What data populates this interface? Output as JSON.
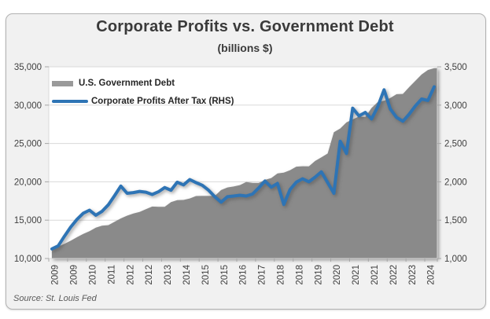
{
  "title": "Corporate Profits vs. Government Debt",
  "subtitle": "(billions $)",
  "source": "Source: St. Louis Fed",
  "legend": [
    {
      "label": "U.S. Government Debt",
      "color": "#9a9a9a",
      "marker": "rect"
    },
    {
      "label": "Corporate Profits After Tax (RHS)",
      "color": "#2e74b5",
      "marker": "line"
    }
  ],
  "colors": {
    "area_fill": "#8a8a8a",
    "line_stroke": "#2e74b5",
    "plot_background": "#ffffff",
    "frame_background": "#f1f1f1",
    "gridline": "#d9d9d9",
    "axis_text": "#404040",
    "tick_mark": "#a6a6a6",
    "plot_border": "#d9d9d9",
    "bottom_axis": "#bfbfbf"
  },
  "chart_data": {
    "type": "area",
    "subtype": "area-plus-line-dual-axis",
    "title": "Corporate Profits vs. Government Debt",
    "subtitle": "(billions $)",
    "x_frequency": "quarterly",
    "x_tick_labels": [
      "2009",
      "2009",
      "2010",
      "2011",
      "2012",
      "2012",
      "2013",
      "2014",
      "2015",
      "2015",
      "2016",
      "2017",
      "2018",
      "2018",
      "2019",
      "2020",
      "2021",
      "2021",
      "2022",
      "2023",
      "2024"
    ],
    "left_axis": {
      "min": 10000,
      "max": 35000,
      "tick_labels": [
        "35,000",
        "30,000",
        "25,000",
        "20,000",
        "15,000",
        "10,000"
      ]
    },
    "right_axis": {
      "min": 1000,
      "max": 3500,
      "tick_labels": [
        "3,500",
        "3,000",
        "2,500",
        "2,000",
        "1,500",
        "1,000"
      ]
    },
    "grid": "horizontal",
    "legend_position": "top-left-inside",
    "series": [
      {
        "name": "U.S. Government Debt",
        "type": "area",
        "axis": "left",
        "values": [
          11127,
          11545,
          11910,
          12311,
          12773,
          13202,
          13562,
          14025,
          14270,
          14343,
          14790,
          15223,
          15582,
          15856,
          16066,
          16433,
          16771,
          16738,
          16738,
          17352,
          17601,
          17633,
          17824,
          18141,
          18152,
          18152,
          18151,
          18922,
          19265,
          19382,
          19573,
          19977,
          19846,
          19845,
          20245,
          20493,
          21090,
          21195,
          21516,
          21974,
          22028,
          22023,
          22719,
          23201,
          23687,
          26477,
          26945,
          27748,
          28133,
          28529,
          28429,
          29617,
          30401,
          30569,
          30929,
          31420,
          31458,
          32332,
          33167,
          34001,
          34580,
          34830
        ]
      },
      {
        "name": "Corporate Profits After Tax (RHS)",
        "type": "line",
        "axis": "right",
        "values": [
          1125,
          1165,
          1290,
          1410,
          1510,
          1590,
          1630,
          1565,
          1615,
          1700,
          1820,
          1945,
          1850,
          1860,
          1875,
          1865,
          1835,
          1870,
          1925,
          1890,
          1995,
          1960,
          2030,
          1990,
          1955,
          1890,
          1805,
          1735,
          1805,
          1815,
          1825,
          1815,
          1840,
          1920,
          2010,
          1930,
          1980,
          1705,
          1900,
          1995,
          2040,
          2000,
          2060,
          2130,
          1990,
          1850,
          2530,
          2370,
          2960,
          2860,
          2905,
          2820,
          2980,
          3200,
          2950,
          2840,
          2790,
          2880,
          2990,
          3080,
          3060,
          3240
        ]
      }
    ]
  }
}
